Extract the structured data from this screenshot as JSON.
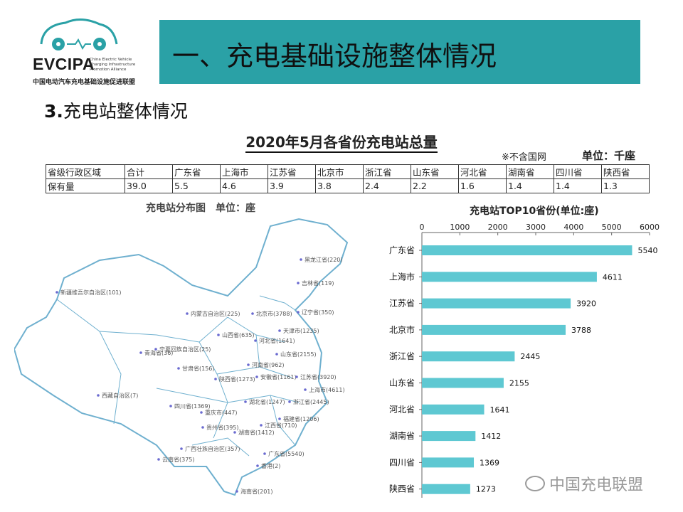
{
  "logo": {
    "brand": "EVCIPA",
    "brand_sub": "China Electric Vehicle Charging Infrastructure Promotion Alliance",
    "org": "中国电动汽车充电基础设施促进联盟"
  },
  "header": {
    "title": "一、充电基础设施整体情况"
  },
  "section": {
    "number": "3.",
    "title": "充电站整体情况"
  },
  "table_block": {
    "title": "2020年5月各省份充电站总量",
    "note": "※不含国网",
    "unit": "单位：千座",
    "row_header_1": "省级行政区域",
    "row_header_2": "保有量",
    "columns": [
      "合计",
      "广东省",
      "上海市",
      "江苏省",
      "北京市",
      "浙江省",
      "山东省",
      "河北省",
      "湖南省",
      "四川省",
      "陕西省"
    ],
    "values": [
      "39.0",
      "5.5",
      "4.6",
      "3.9",
      "3.8",
      "2.4",
      "2.2",
      "1.6",
      "1.4",
      "1.4",
      "1.3"
    ]
  },
  "map": {
    "title": "充电站分布图　单位：座",
    "labels": [
      {
        "text": "黑龙江省(220)"
      },
      {
        "text": "吉林省(119)"
      },
      {
        "text": "新疆维吾尔自治区(101)"
      },
      {
        "text": "内蒙古自治区(225)"
      },
      {
        "text": "北京市(3788)"
      },
      {
        "text": "辽宁省(350)"
      },
      {
        "text": "天津市(1235)"
      },
      {
        "text": "山西省(635)"
      },
      {
        "text": "河北省(1641)"
      },
      {
        "text": "宁夏回族自治区(25)"
      },
      {
        "text": "山东省(2155)"
      },
      {
        "text": "青海省(36)"
      },
      {
        "text": "甘肃省(156)"
      },
      {
        "text": "河南省(962)"
      },
      {
        "text": "陕西省(1273)"
      },
      {
        "text": "安徽省(1161)"
      },
      {
        "text": "江苏省(3920)"
      },
      {
        "text": "上海市(4611)"
      },
      {
        "text": "西藏自治区(7)"
      },
      {
        "text": "湖北省(1247)"
      },
      {
        "text": "浙江省(2445)"
      },
      {
        "text": "四川省(1369)"
      },
      {
        "text": "重庆市(447)"
      },
      {
        "text": "福建省(1206)"
      },
      {
        "text": "贵州省(395)"
      },
      {
        "text": "江西省(710)"
      },
      {
        "text": "湖南省(1412)"
      },
      {
        "text": "广西壮族自治区(357)"
      },
      {
        "text": "云南省(375)"
      },
      {
        "text": "广东省(5540)"
      },
      {
        "text": "香港(2)"
      },
      {
        "text": "海南省(201)"
      }
    ]
  },
  "chart_data": {
    "type": "bar",
    "orientation": "horizontal",
    "title": "充电站TOP10省份(单位:座)",
    "categories": [
      "广东省",
      "上海市",
      "江苏省",
      "北京市",
      "浙江省",
      "山东省",
      "河北省",
      "湖南省",
      "四川省",
      "陕西省"
    ],
    "values": [
      5540,
      4611,
      3920,
      3788,
      2445,
      2155,
      1641,
      1412,
      1369,
      1273
    ],
    "xlim": [
      0,
      6000
    ],
    "xticks": [
      0,
      1000,
      2000,
      3000,
      4000,
      5000,
      6000
    ],
    "xtick_labels": [
      "0",
      "1000",
      "2000",
      "3000",
      "4000",
      "5000",
      "6000"
    ],
    "axis_position": "top",
    "bar_color": "#5ec8d2",
    "grid": false
  },
  "watermark": {
    "text": "中国充电联盟"
  }
}
